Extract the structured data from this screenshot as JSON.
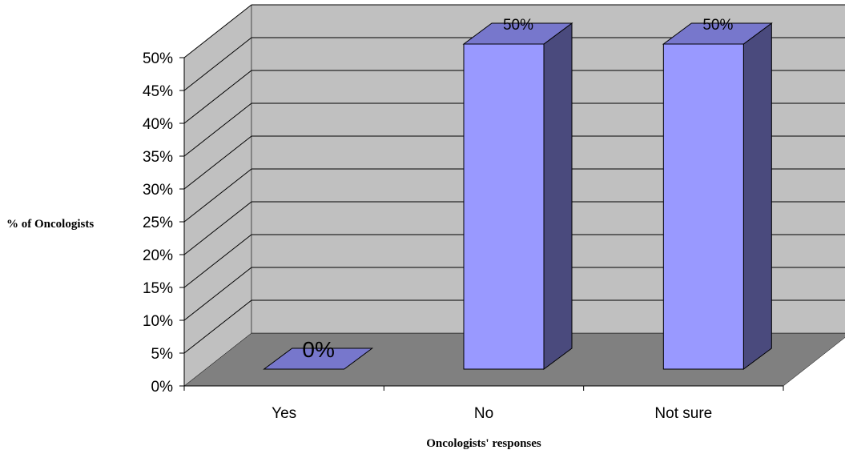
{
  "chart_data": {
    "type": "bar",
    "title": "",
    "xlabel": "Oncologists' responses",
    "ylabel": "% of Oncologists",
    "categories": [
      "Yes",
      "No",
      "Not sure"
    ],
    "values": [
      0,
      50,
      50
    ],
    "data_labels": [
      "0%",
      "50%",
      "50%"
    ],
    "y_ticks": [
      "0%",
      "5%",
      "10%",
      "15%",
      "20%",
      "25%",
      "30%",
      "35%",
      "40%",
      "45%",
      "50%"
    ],
    "ylim": [
      0,
      50
    ],
    "grid": true,
    "three_d": true,
    "colors": {
      "bar_front": "#9999ff",
      "bar_top": "#7777cc",
      "bar_side": "#4a4a7d",
      "back_wall": "#c0c0c0",
      "side_wall": "#c0c0c0",
      "floor": "#808080"
    }
  }
}
